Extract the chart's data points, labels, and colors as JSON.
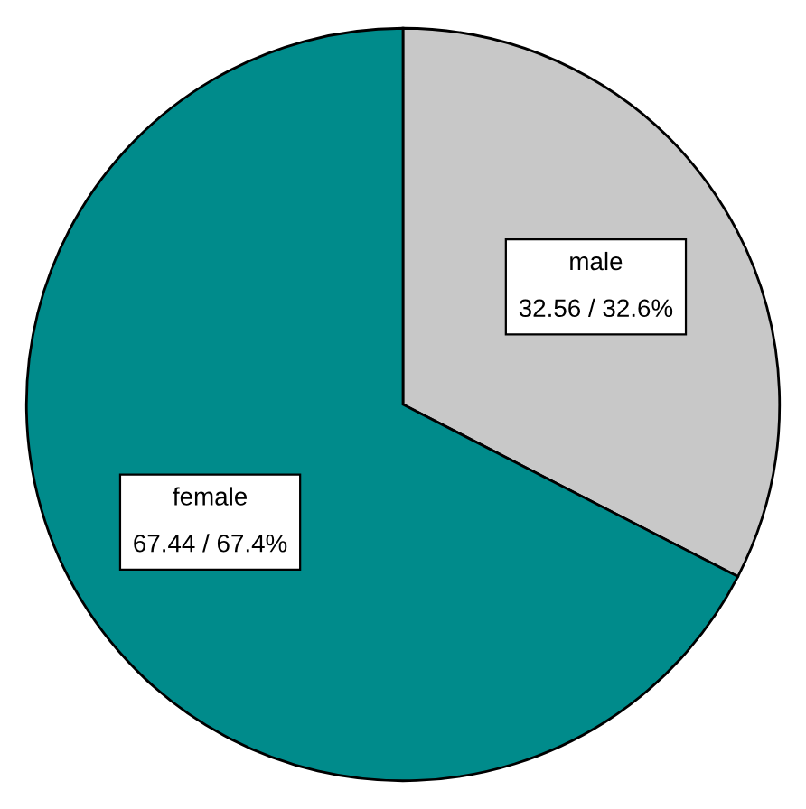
{
  "chart_data": {
    "type": "pie",
    "categories": [
      "male",
      "female"
    ],
    "values": [
      32.56,
      67.44
    ],
    "colors": [
      "#c8c8c8",
      "#008b8b"
    ],
    "value_labels": [
      "32.56 / 32.6%",
      "67.44 / 67.4%"
    ]
  }
}
